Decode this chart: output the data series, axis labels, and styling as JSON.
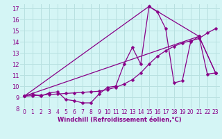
{
  "xlabel": "Windchill (Refroidissement éolien,°C)",
  "background_color": "#d4f5f5",
  "grid_color": "#b8e0e0",
  "line_color": "#880088",
  "xlim": [
    -0.5,
    23.5
  ],
  "ylim": [
    8,
    17.4
  ],
  "xticks": [
    0,
    1,
    2,
    3,
    4,
    5,
    6,
    7,
    8,
    9,
    10,
    11,
    12,
    13,
    14,
    15,
    16,
    17,
    18,
    19,
    20,
    21,
    22,
    23
  ],
  "yticks": [
    8,
    9,
    10,
    11,
    12,
    13,
    14,
    15,
    16,
    17
  ],
  "series": [
    {
      "x": [
        0,
        1,
        2,
        3,
        4,
        5,
        6,
        7,
        8,
        9,
        10,
        11,
        12,
        13,
        14,
        15,
        16,
        17,
        18,
        19,
        20,
        21,
        22,
        23
      ],
      "y": [
        9.1,
        9.3,
        9.1,
        9.4,
        9.5,
        8.8,
        8.7,
        8.5,
        8.5,
        9.3,
        9.9,
        10.0,
        12.0,
        13.5,
        12.0,
        17.2,
        16.7,
        15.2,
        10.3,
        10.5,
        14.0,
        14.5,
        11.1,
        11.2
      ]
    },
    {
      "x": [
        0,
        1,
        2,
        3,
        4,
        5,
        6,
        7,
        8,
        9,
        10,
        11,
        12,
        13,
        14,
        15,
        16,
        17,
        18,
        19,
        20,
        21,
        22,
        23
      ],
      "y": [
        9.1,
        9.15,
        9.2,
        9.25,
        9.3,
        9.35,
        9.4,
        9.45,
        9.5,
        9.55,
        9.7,
        9.9,
        10.2,
        10.6,
        11.2,
        12.0,
        12.7,
        13.2,
        13.6,
        13.9,
        14.1,
        14.3,
        14.8,
        15.2
      ]
    },
    {
      "x": [
        0,
        21,
        23
      ],
      "y": [
        9.1,
        14.5,
        11.2
      ]
    },
    {
      "x": [
        0,
        15,
        21,
        23
      ],
      "y": [
        9.1,
        17.2,
        14.5,
        11.2
      ]
    }
  ],
  "markersize": 2.5,
  "linewidth": 0.9,
  "tick_fontsize": 5.5,
  "xlabel_fontsize": 6.0
}
